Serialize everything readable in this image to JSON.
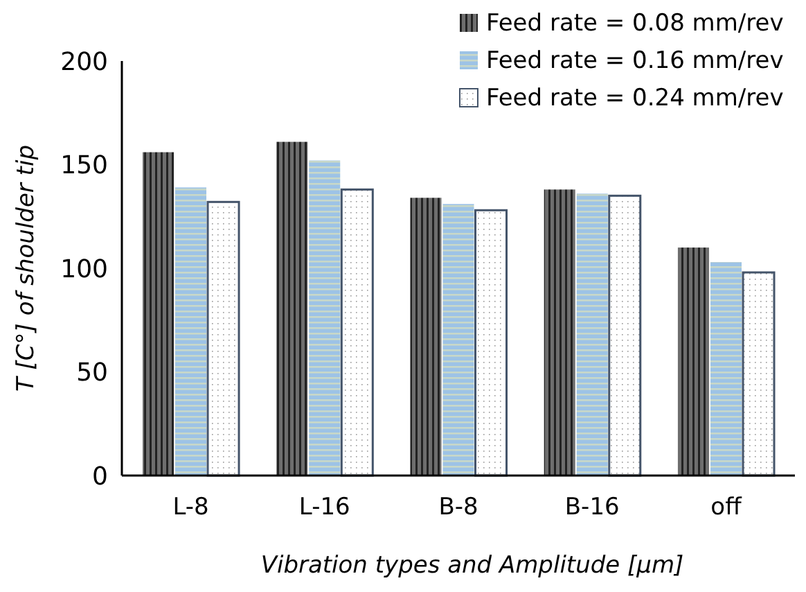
{
  "chart_data": {
    "type": "bar",
    "xlabel": "Vibration types and Amplitude [µm]",
    "ylabel": "T [C°] of shoulder tip",
    "categories": [
      "L-8",
      "L-16",
      "B-8",
      "B-16",
      "off"
    ],
    "series": [
      {
        "name": "Feed rate = 0.08 mm/rev",
        "color": "#6e6e6e",
        "values": [
          156,
          161,
          134,
          138,
          110
        ]
      },
      {
        "name": "Feed rate = 0.16 mm/rev",
        "color": "#9dc3e6",
        "values": [
          139,
          152,
          131,
          136,
          103
        ]
      },
      {
        "name": "Feed rate = 0.24 mm/rev",
        "color": "#44546a",
        "values": [
          132,
          138,
          128,
          135,
          98
        ]
      }
    ],
    "ylim": [
      0,
      200
    ],
    "yticks": [
      0,
      50,
      100,
      150,
      200
    ],
    "grid": false,
    "legend": "top right"
  }
}
